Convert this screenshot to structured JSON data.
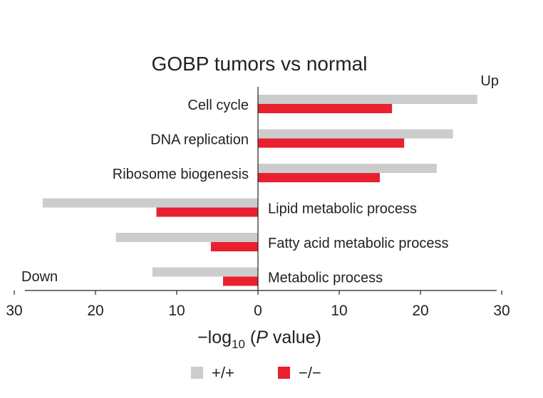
{
  "chart_data": {
    "type": "bar",
    "orientation": "horizontal-diverging",
    "title": "GOBP tumors vs normal",
    "xlabel_prefix": "−log",
    "xlabel_subscript": "10",
    "xlabel_open": " (",
    "xlabel_italic": "P",
    "xlabel_suffix": " value)",
    "up_label": "Up",
    "down_label": "Down",
    "xlim": [
      -30,
      30
    ],
    "ticks": [
      -30,
      -20,
      -10,
      0,
      10,
      20,
      30
    ],
    "tick_labels": [
      "30",
      "20",
      "10",
      "0",
      "10",
      "20",
      "30"
    ],
    "categories": [
      "Cell cycle",
      "DNA replication",
      "Ribosome biogenesis",
      "Lipid metabolic process",
      "Fatty acid metabolic process",
      "Metabolic process"
    ],
    "series": [
      {
        "name": "+/+",
        "color": "#cccccc",
        "values": [
          27,
          24,
          22,
          -26.5,
          -17.5,
          -13
        ]
      },
      {
        "name": "−/−",
        "color": "#e8202f",
        "values": [
          16.5,
          18,
          15,
          -12.5,
          -5.8,
          -4.3
        ]
      }
    ],
    "legend": [
      {
        "label": "+/+",
        "color": "#cccccc"
      },
      {
        "label": "−/−",
        "color": "#e8202f"
      }
    ]
  }
}
